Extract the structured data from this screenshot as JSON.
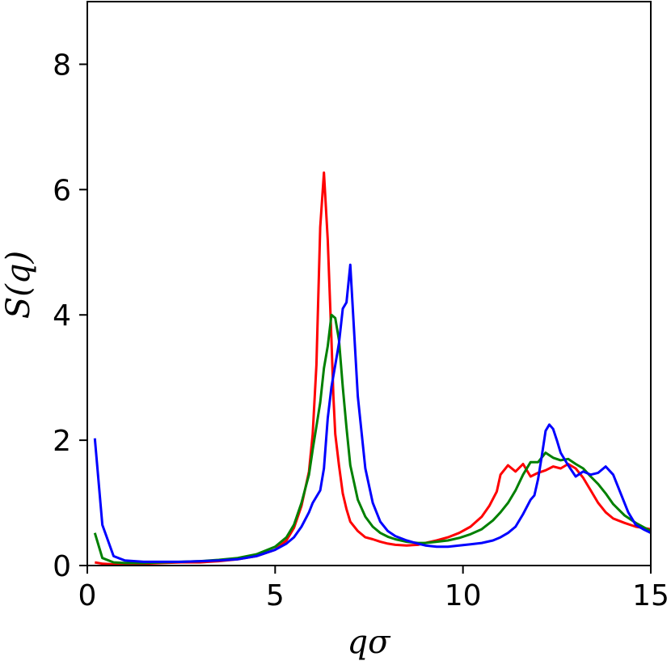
{
  "chart_data": {
    "type": "line",
    "title": "",
    "xlabel": "qσ",
    "ylabel": "S(q)",
    "xlim": [
      0,
      15
    ],
    "ylim": [
      0,
      9
    ],
    "xticks": [
      0,
      5,
      10,
      15
    ],
    "yticks": [
      0,
      2,
      4,
      6,
      8
    ],
    "grid": false,
    "series": [
      {
        "color": "#ff0000",
        "x": [
          0.2,
          0.4,
          0.7,
          1.0,
          1.5,
          2.0,
          2.5,
          3.0,
          3.5,
          4.0,
          4.5,
          5.0,
          5.3,
          5.5,
          5.7,
          5.9,
          6.0,
          6.1,
          6.2,
          6.3,
          6.4,
          6.5,
          6.55,
          6.6,
          6.7,
          6.8,
          6.9,
          7.0,
          7.2,
          7.4,
          7.6,
          7.8,
          8.0,
          8.2,
          8.5,
          8.8,
          9.0,
          9.3,
          9.6,
          9.9,
          10.2,
          10.5,
          10.7,
          10.9,
          11.0,
          11.2,
          11.4,
          11.6,
          11.8,
          12.0,
          12.2,
          12.4,
          12.6,
          12.8,
          13.0,
          13.2,
          13.4,
          13.6,
          13.8,
          14.0,
          14.3,
          14.6,
          15.0
        ],
        "y": [
          0.05,
          0.03,
          0.02,
          0.02,
          0.03,
          0.04,
          0.05,
          0.05,
          0.07,
          0.1,
          0.15,
          0.25,
          0.4,
          0.6,
          0.95,
          1.5,
          2.1,
          3.2,
          5.4,
          6.27,
          5.2,
          3.6,
          2.7,
          2.1,
          1.6,
          1.15,
          0.9,
          0.7,
          0.55,
          0.45,
          0.42,
          0.38,
          0.35,
          0.33,
          0.32,
          0.33,
          0.36,
          0.4,
          0.45,
          0.52,
          0.62,
          0.78,
          0.95,
          1.18,
          1.45,
          1.6,
          1.5,
          1.62,
          1.42,
          1.48,
          1.52,
          1.58,
          1.55,
          1.62,
          1.55,
          1.4,
          1.2,
          1.0,
          0.85,
          0.75,
          0.68,
          0.62,
          0.58
        ]
      },
      {
        "color": "#008000",
        "x": [
          0.2,
          0.4,
          0.7,
          1.0,
          1.5,
          2.0,
          2.5,
          3.0,
          3.5,
          4.0,
          4.5,
          5.0,
          5.3,
          5.5,
          5.7,
          5.9,
          6.0,
          6.2,
          6.3,
          6.4,
          6.5,
          6.6,
          6.7,
          6.8,
          6.9,
          7.0,
          7.2,
          7.4,
          7.6,
          7.8,
          8.0,
          8.2,
          8.5,
          8.8,
          9.0,
          9.3,
          9.6,
          9.9,
          10.2,
          10.5,
          10.8,
          11.0,
          11.2,
          11.4,
          11.6,
          11.8,
          12.0,
          12.2,
          12.4,
          12.6,
          12.8,
          13.0,
          13.2,
          13.4,
          13.6,
          13.8,
          14.0,
          14.3,
          14.6,
          15.0
        ],
        "y": [
          0.52,
          0.12,
          0.05,
          0.04,
          0.04,
          0.05,
          0.06,
          0.07,
          0.09,
          0.12,
          0.18,
          0.3,
          0.45,
          0.65,
          1.0,
          1.45,
          1.85,
          2.6,
          3.15,
          3.5,
          4.0,
          3.95,
          3.6,
          2.85,
          2.2,
          1.6,
          1.05,
          0.78,
          0.62,
          0.52,
          0.46,
          0.42,
          0.38,
          0.36,
          0.36,
          0.38,
          0.4,
          0.44,
          0.5,
          0.58,
          0.72,
          0.85,
          1.0,
          1.2,
          1.45,
          1.65,
          1.65,
          1.8,
          1.72,
          1.68,
          1.7,
          1.62,
          1.55,
          1.42,
          1.3,
          1.15,
          0.98,
          0.8,
          0.68,
          0.55
        ]
      },
      {
        "color": "#0000ff",
        "x": [
          0.2,
          0.4,
          0.7,
          1.0,
          1.5,
          2.0,
          2.5,
          3.0,
          3.5,
          4.0,
          4.5,
          5.0,
          5.3,
          5.5,
          5.7,
          5.9,
          6.0,
          6.2,
          6.3,
          6.4,
          6.5,
          6.6,
          6.7,
          6.8,
          6.9,
          7.0,
          7.2,
          7.4,
          7.6,
          7.8,
          8.0,
          8.2,
          8.5,
          8.8,
          9.0,
          9.3,
          9.6,
          9.9,
          10.2,
          10.5,
          10.8,
          11.0,
          11.2,
          11.4,
          11.6,
          11.8,
          11.9,
          12.0,
          12.1,
          12.2,
          12.3,
          12.4,
          12.5,
          12.6,
          12.8,
          13.0,
          13.2,
          13.4,
          13.6,
          13.8,
          14.0,
          14.2,
          14.4,
          14.6,
          14.8,
          15.0
        ],
        "y": [
          2.03,
          0.65,
          0.15,
          0.08,
          0.06,
          0.06,
          0.06,
          0.07,
          0.08,
          0.1,
          0.15,
          0.25,
          0.35,
          0.45,
          0.62,
          0.85,
          1.0,
          1.2,
          1.55,
          2.35,
          2.85,
          3.2,
          3.55,
          4.1,
          4.2,
          4.8,
          2.7,
          1.55,
          1.0,
          0.7,
          0.55,
          0.47,
          0.4,
          0.35,
          0.32,
          0.3,
          0.3,
          0.32,
          0.34,
          0.36,
          0.4,
          0.45,
          0.52,
          0.62,
          0.82,
          1.05,
          1.12,
          1.38,
          1.75,
          2.15,
          2.25,
          2.18,
          2.0,
          1.8,
          1.6,
          1.42,
          1.5,
          1.45,
          1.48,
          1.58,
          1.45,
          1.15,
          0.85,
          0.65,
          0.58,
          0.52
        ]
      }
    ]
  }
}
